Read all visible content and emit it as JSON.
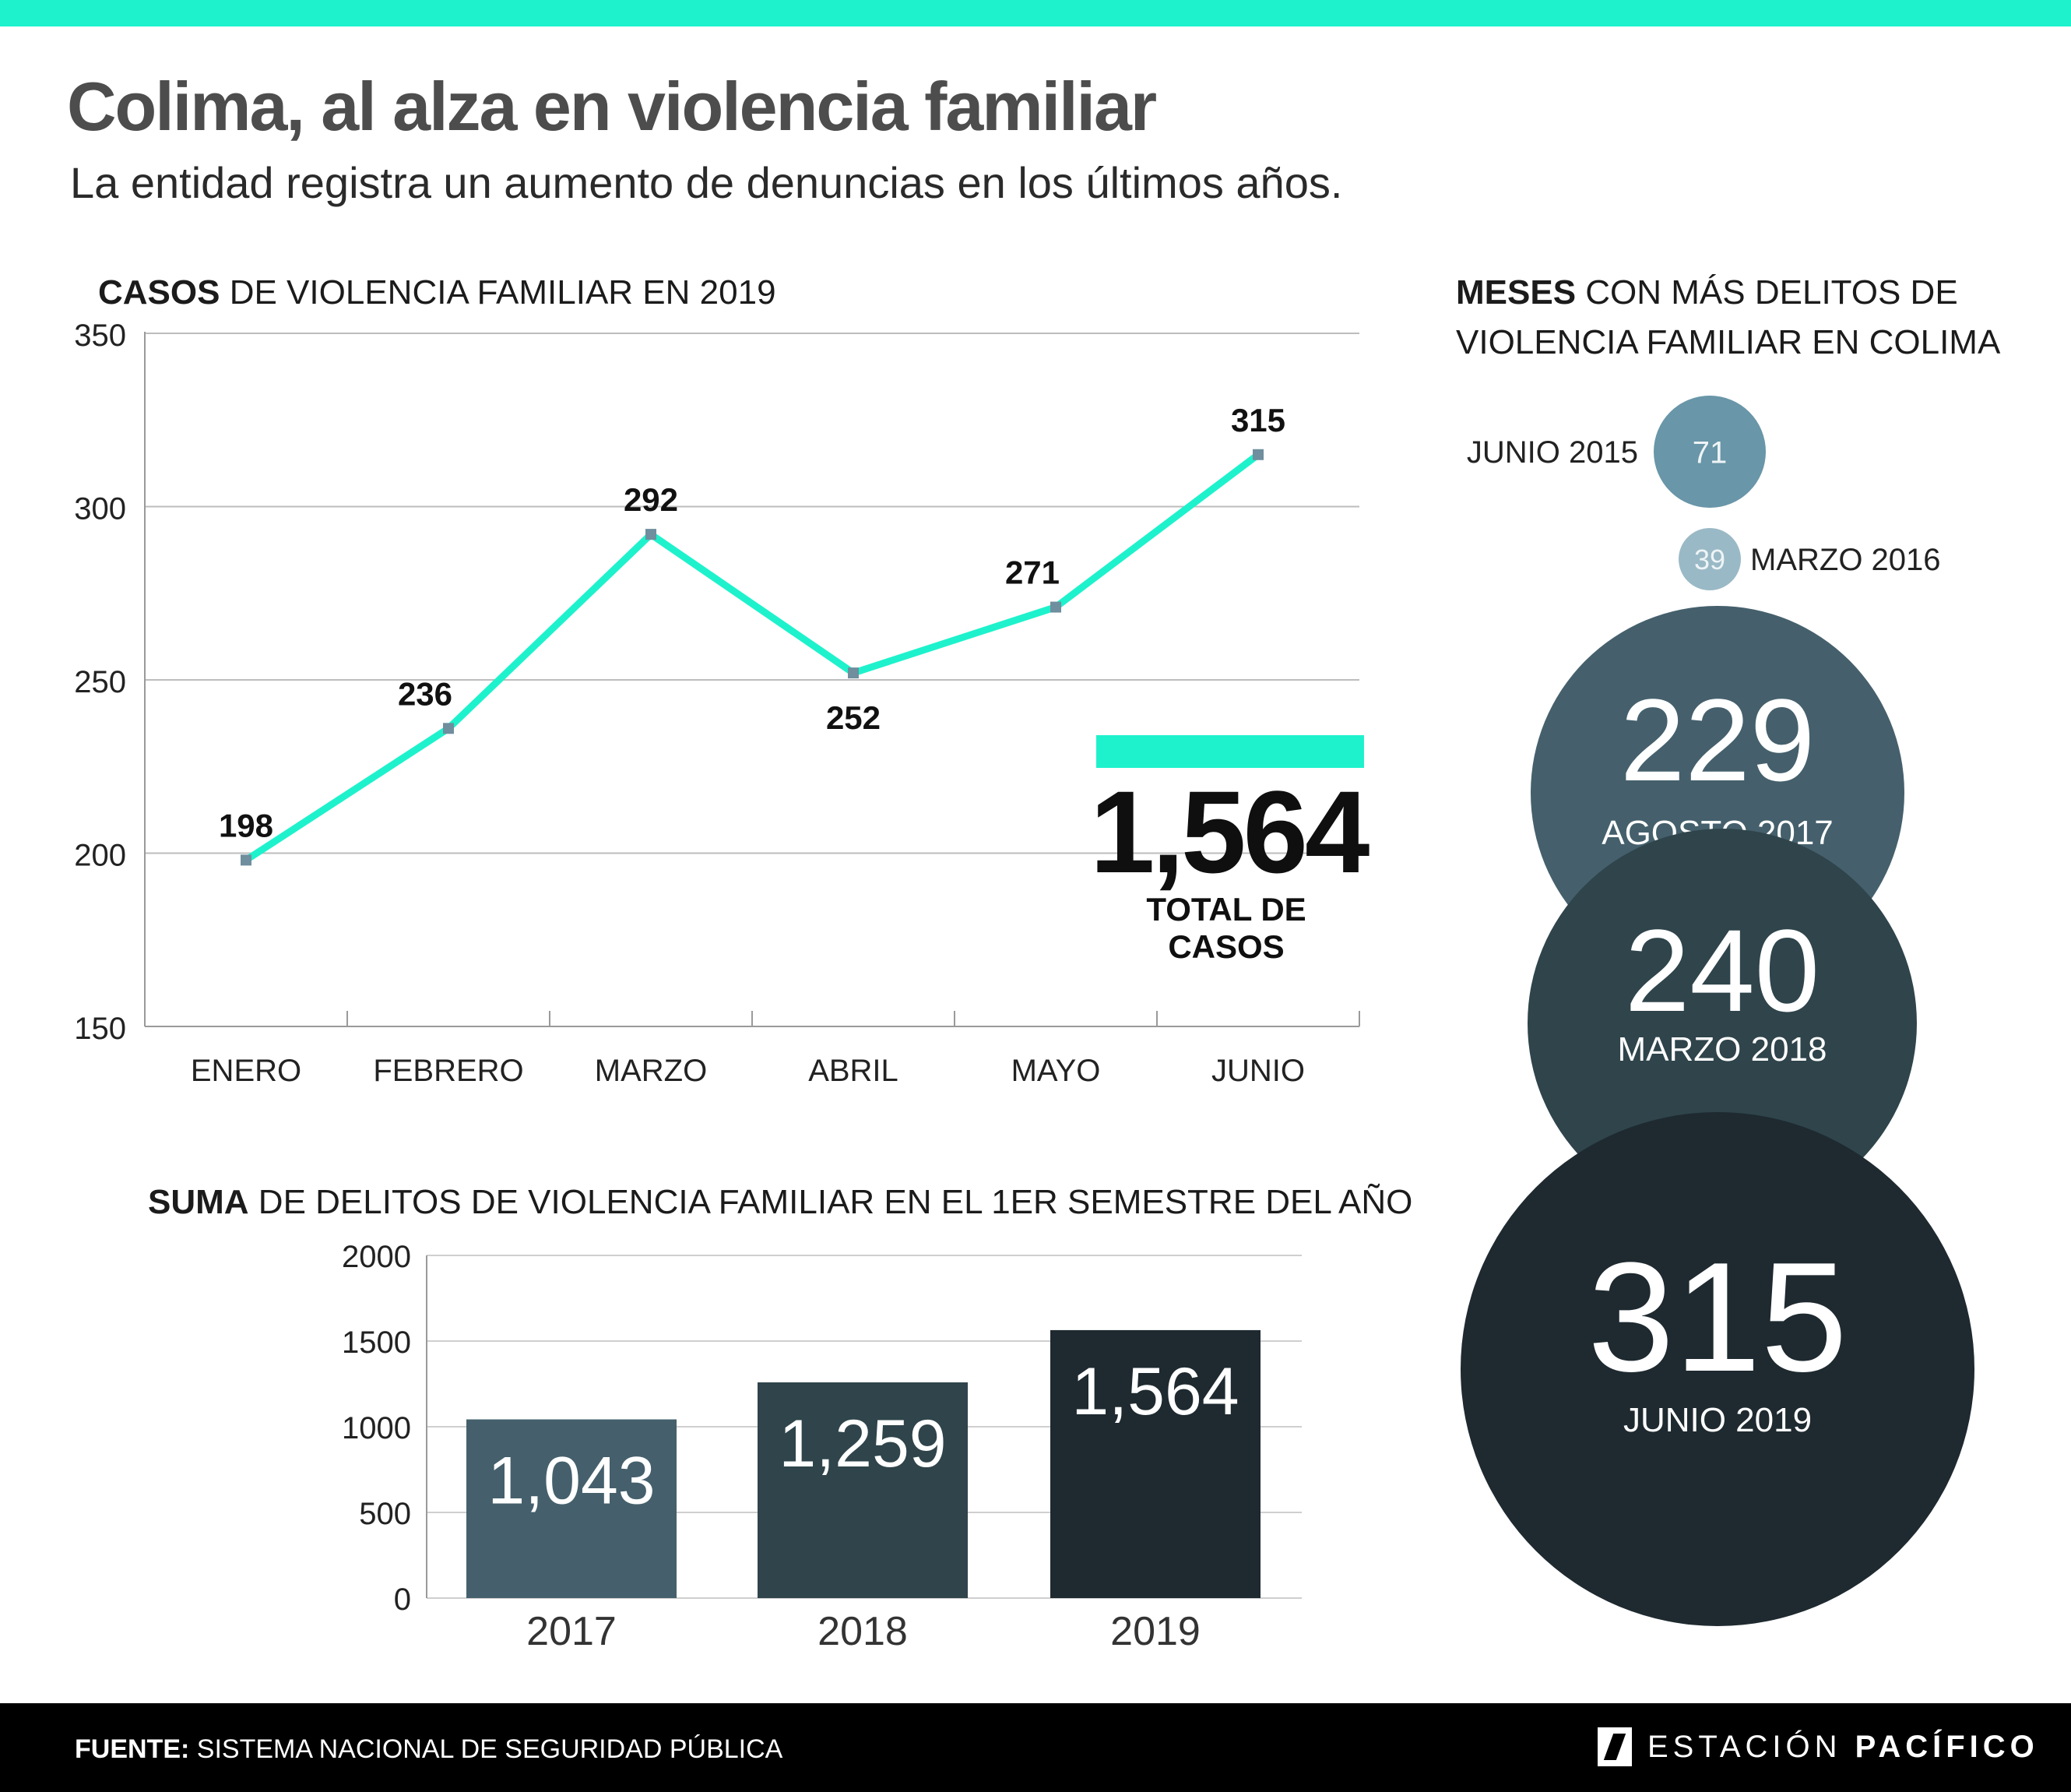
{
  "header": {
    "title": "Colima, al alza en violencia familiar",
    "subtitle": "La entidad registra un aumento de denuncias en los últimos años."
  },
  "line_section": {
    "title_bold": "CASOS",
    "title_rest": " DE VIOLENCIA FAMILIAR EN 2019"
  },
  "total": {
    "value": "1,564",
    "label": "TOTAL DE CASOS"
  },
  "bar_section": {
    "title_bold": "SUMA",
    "title_rest": " DE DELITOS DE VIOLENCIA FAMILIAR EN EL 1ER SEMESTRE DEL AÑO"
  },
  "bubble_section": {
    "title_bold": "MESES",
    "title_line1_rest": " CON MÁS DELITOS DE",
    "title_line2": "VIOLENCIA FAMILIAR EN COLIMA"
  },
  "chart_data": [
    {
      "type": "line",
      "categories": [
        "ENERO",
        "FEBRERO",
        "MARZO",
        "ABRIL",
        "MAYO",
        "JUNIO"
      ],
      "values": [
        198,
        236,
        292,
        252,
        271,
        315
      ],
      "data_labels": [
        "198",
        "236",
        "292",
        "252",
        "271",
        "315"
      ],
      "ylim": [
        150,
        350
      ],
      "yticks": [
        "150",
        "200",
        "250",
        "300",
        "350"
      ],
      "grid": true,
      "color": "#1ef2cc"
    },
    {
      "type": "bar",
      "categories": [
        "2017",
        "2018",
        "2019"
      ],
      "values": [
        1043,
        1259,
        1564
      ],
      "data_labels": [
        "1,043",
        "1,259",
        "1,564"
      ],
      "ylim": [
        0,
        2000
      ],
      "yticks": [
        "0",
        "500",
        "1000",
        "1500",
        "2000"
      ],
      "grid": true,
      "colors": [
        "#45606c",
        "#2f444b",
        "#1e2a30"
      ]
    },
    {
      "type": "bubble",
      "items": [
        {
          "label": "JUNIO 2015",
          "value": 71,
          "display": "71",
          "color": "#6996a8"
        },
        {
          "label": "MARZO 2016",
          "value": 39,
          "display": "39",
          "color": "#9ab9c6"
        },
        {
          "label": "AGOSTO 2017",
          "value": 229,
          "display": "229",
          "color": "#45606c"
        },
        {
          "label": "MARZO 2018",
          "value": 240,
          "display": "240",
          "color": "#2f444b"
        },
        {
          "label": "JUNIO 2019",
          "value": 315,
          "display": "315",
          "color": "#1e2a30"
        }
      ]
    }
  ],
  "footer": {
    "source_bold": "FUENTE:",
    "source_text": " SISTEMA NACIONAL DE SEGURIDAD PÚBLICA",
    "logo_light": "ESTACIÓN ",
    "logo_bold": "PACÍFICO"
  }
}
